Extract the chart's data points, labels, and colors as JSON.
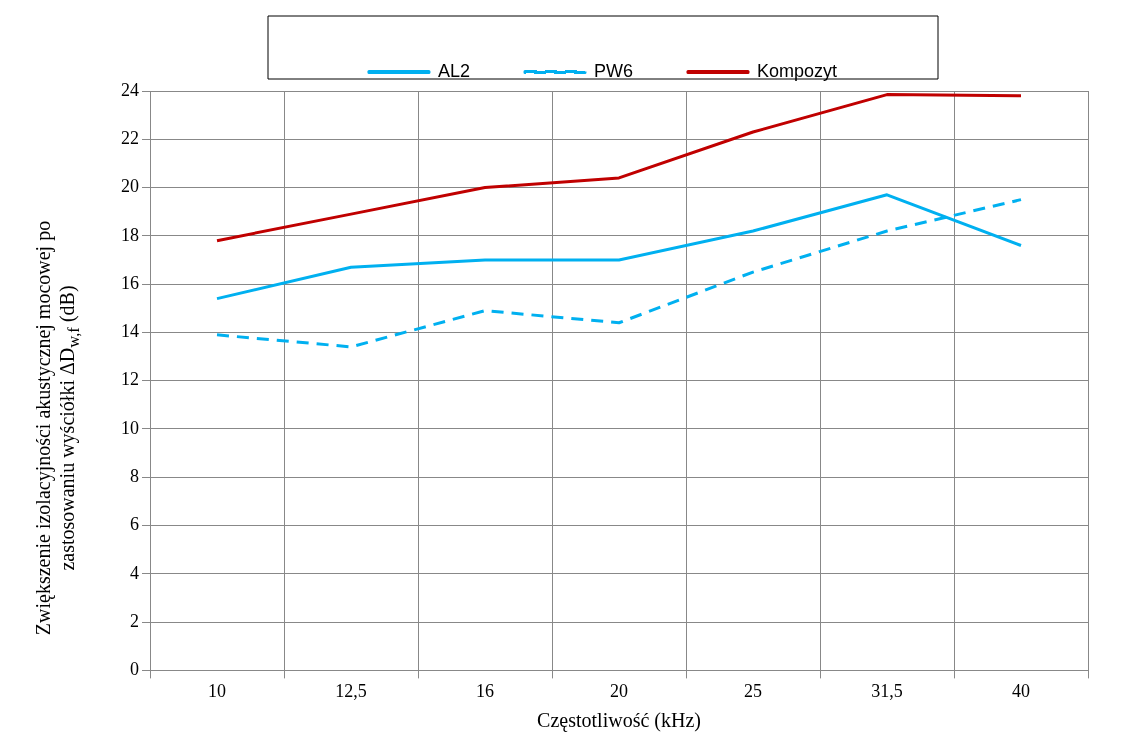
{
  "chart_data": {
    "type": "line",
    "xlabel": "Częstotliwość (kHz)",
    "ylabel": "Zwiększenie izolacyjności akustycznej mocowej po zastosowaniu wyściółki ΔD$_{w,f}$ (dB)",
    "categories": [
      "10",
      "12,5",
      "16",
      "20",
      "25",
      "31,5",
      "40"
    ],
    "series": [
      {
        "name": "AL2",
        "color": "#00b0f0",
        "line_style": "solid",
        "values": [
          15.4,
          16.7,
          17.0,
          17.0,
          18.2,
          19.7,
          17.6
        ]
      },
      {
        "name": "PW6",
        "color": "#00b0f0",
        "line_style": "dashed",
        "values": [
          13.9,
          13.4,
          14.9,
          14.4,
          16.5,
          18.2,
          19.5
        ]
      },
      {
        "name": "Kompozyt",
        "color": "#c00000",
        "line_style": "solid",
        "values": [
          17.8,
          18.9,
          20.0,
          20.4,
          22.3,
          23.85,
          23.8
        ]
      }
    ],
    "ylim": [
      0,
      24
    ],
    "yticks": [
      0,
      2,
      4,
      6,
      8,
      10,
      12,
      14,
      16,
      18,
      20,
      22,
      24
    ],
    "grid": true,
    "legend": "top",
    "marker": "none"
  }
}
